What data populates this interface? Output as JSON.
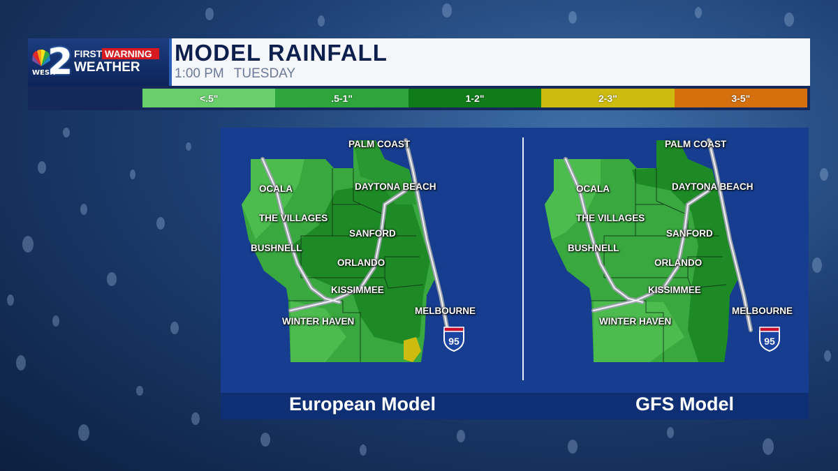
{
  "header": {
    "station_number": "2",
    "station_call": "WESH",
    "brand_first": "FIRST",
    "brand_warning": "WARNING",
    "brand_weather": "WEATHER",
    "title": "MODEL RAINFALL",
    "time": "1:00 PM",
    "day": "TUESDAY"
  },
  "legend": [
    {
      "label": "<.5\"",
      "color": "#69cf6b"
    },
    {
      "label": ".5-1\"",
      "color": "#2ea43a"
    },
    {
      "label": "1-2\"",
      "color": "#107c19"
    },
    {
      "label": "2-3\"",
      "color": "#cdbb10"
    },
    {
      "label": "3-5\"",
      "color": "#d5700e"
    }
  ],
  "maps": [
    {
      "model": "European Model",
      "cities": [
        "PALM COAST",
        "DAYTONA BEACH",
        "OCALA",
        "THE VILLAGES",
        "SANFORD",
        "BUSHNELL",
        "ORLANDO",
        "KISSIMMEE",
        "MELBOURNE",
        "WINTER HAVEN"
      ],
      "interstate": "95"
    },
    {
      "model": "GFS Model",
      "cities": [
        "PALM COAST",
        "DAYTONA BEACH",
        "OCALA",
        "THE VILLAGES",
        "SANFORD",
        "BUSHNELL",
        "ORLANDO",
        "KISSIMMEE",
        "MELBOURNE",
        "WINTER HAVEN"
      ],
      "interstate": "95"
    }
  ]
}
